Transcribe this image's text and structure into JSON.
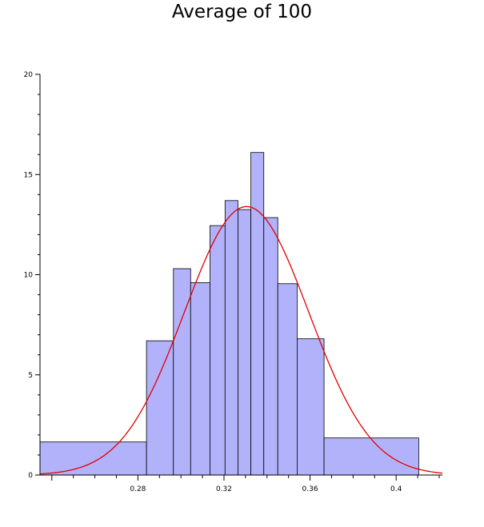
{
  "chart_data": {
    "type": "bar",
    "title": "Average of 100",
    "xlabel": "",
    "ylabel": "",
    "xlim": [
      0.2345,
      0.4215
    ],
    "ylim": [
      0,
      20
    ],
    "x_ticks": [
      0.28,
      0.32,
      0.36,
      0.4
    ],
    "x_tick_labels": [
      "0.28",
      "0.32",
      "0.36",
      "0.4"
    ],
    "y_ticks": [
      0,
      5,
      10,
      15,
      20
    ],
    "y_tick_labels": [
      "0",
      "5",
      "10",
      "15",
      "20"
    ],
    "grid": false,
    "bins": [
      {
        "x0": 0.2345,
        "x1": 0.284,
        "value": 1.65
      },
      {
        "x0": 0.284,
        "x1": 0.2965,
        "value": 6.7
      },
      {
        "x0": 0.2965,
        "x1": 0.3045,
        "value": 10.3
      },
      {
        "x0": 0.3045,
        "x1": 0.3135,
        "value": 9.6
      },
      {
        "x0": 0.3135,
        "x1": 0.3205,
        "value": 12.45
      },
      {
        "x0": 0.3205,
        "x1": 0.3265,
        "value": 13.7
      },
      {
        "x0": 0.3265,
        "x1": 0.3325,
        "value": 13.25
      },
      {
        "x0": 0.3325,
        "x1": 0.3385,
        "value": 16.1
      },
      {
        "x0": 0.3385,
        "x1": 0.345,
        "value": 12.85
      },
      {
        "x0": 0.345,
        "x1": 0.354,
        "value": 9.55
      },
      {
        "x0": 0.354,
        "x1": 0.3665,
        "value": 6.8
      },
      {
        "x0": 0.3665,
        "x1": 0.4105,
        "value": 1.85
      }
    ],
    "density_curve": {
      "type": "normal",
      "mean": 0.3305,
      "sd": 0.0289,
      "peak": 13.4,
      "x_range": [
        0.2345,
        0.4215
      ]
    },
    "colors": {
      "bar_fill": "#b2b2fb",
      "bar_stroke": "#000000",
      "curve": "#e00000",
      "axis": "#000000"
    }
  }
}
